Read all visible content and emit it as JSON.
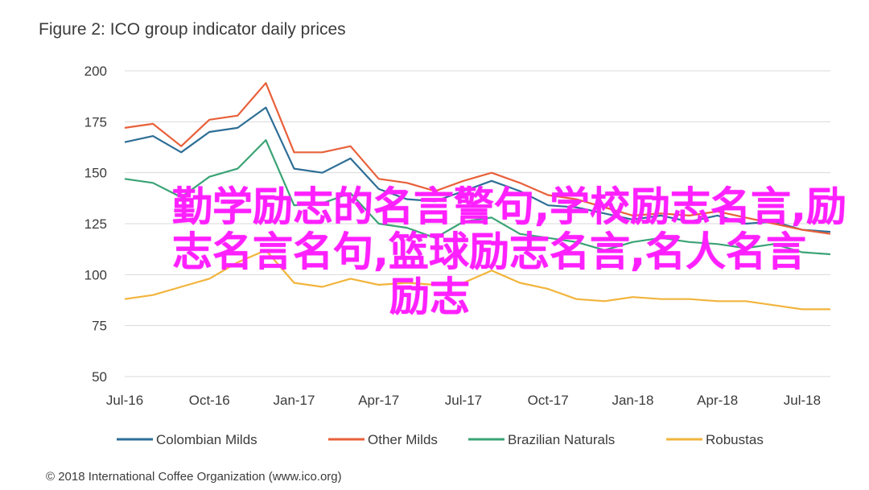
{
  "chart_data": {
    "type": "line",
    "title": "Figure 2: ICO group indicator daily prices",
    "ylim": [
      50,
      200
    ],
    "y_ticks": [
      "200",
      "175",
      "150",
      "125",
      "100",
      "75",
      "50"
    ],
    "x_ticks": [
      "Jul-16",
      "Oct-16",
      "Jan-17",
      "Apr-17",
      "Jul-17",
      "Oct-17",
      "Jan-18",
      "Apr-18",
      "Jul-18"
    ],
    "grid": true,
    "legend_position": "bottom",
    "x": [
      "Jul-16",
      "Aug-16",
      "Sep-16",
      "Oct-16",
      "Nov-16",
      "Dec-16",
      "Jan-17",
      "Feb-17",
      "Mar-17",
      "Apr-17",
      "May-17",
      "Jun-17",
      "Jul-17",
      "Aug-17",
      "Sep-17",
      "Oct-17",
      "Nov-17",
      "Dec-17",
      "Jan-18",
      "Feb-18",
      "Mar-18",
      "Apr-18",
      "May-18",
      "Jun-18",
      "Jul-18",
      "Aug-18"
    ],
    "series": [
      {
        "name": "Colombian Milds",
        "color": "#2e6e96",
        "values": [
          165,
          168,
          160,
          170,
          172,
          182,
          152,
          150,
          157,
          142,
          137,
          136,
          141,
          146,
          141,
          134,
          133,
          130,
          127,
          129,
          126,
          129,
          125,
          126,
          122,
          121
        ]
      },
      {
        "name": "Other Milds",
        "color": "#e8603a",
        "values": [
          172,
          174,
          163,
          176,
          178,
          194,
          160,
          160,
          163,
          147,
          145,
          141,
          146,
          150,
          145,
          139,
          137,
          133,
          129,
          130,
          129,
          131,
          128,
          125,
          122,
          120
        ]
      },
      {
        "name": "Brazilian Naturals",
        "color": "#3aa376",
        "values": [
          147,
          145,
          138,
          148,
          152,
          166,
          134,
          135,
          140,
          125,
          123,
          118,
          126,
          128,
          120,
          118,
          116,
          112,
          116,
          118,
          116,
          115,
          113,
          115,
          111,
          110
        ]
      },
      {
        "name": "Robustas",
        "color": "#f2b43c",
        "values": [
          88,
          90,
          94,
          98,
          106,
          112,
          96,
          94,
          98,
          95,
          96,
          95,
          96,
          102,
          96,
          93,
          88,
          87,
          89,
          88,
          88,
          87,
          87,
          85,
          83,
          83
        ]
      }
    ],
    "copyright": "© 2018 International Coffee Organization (www.ico.org)"
  },
  "overlay": {
    "line1": "勤学励志的名言警句,学校励志名言,励",
    "line2": "志名言名句,篮球励志名言,名人名言",
    "line3": "励志"
  },
  "colors": {
    "grid": "#d9d9d9",
    "overlay_text": "#ff20ff"
  }
}
